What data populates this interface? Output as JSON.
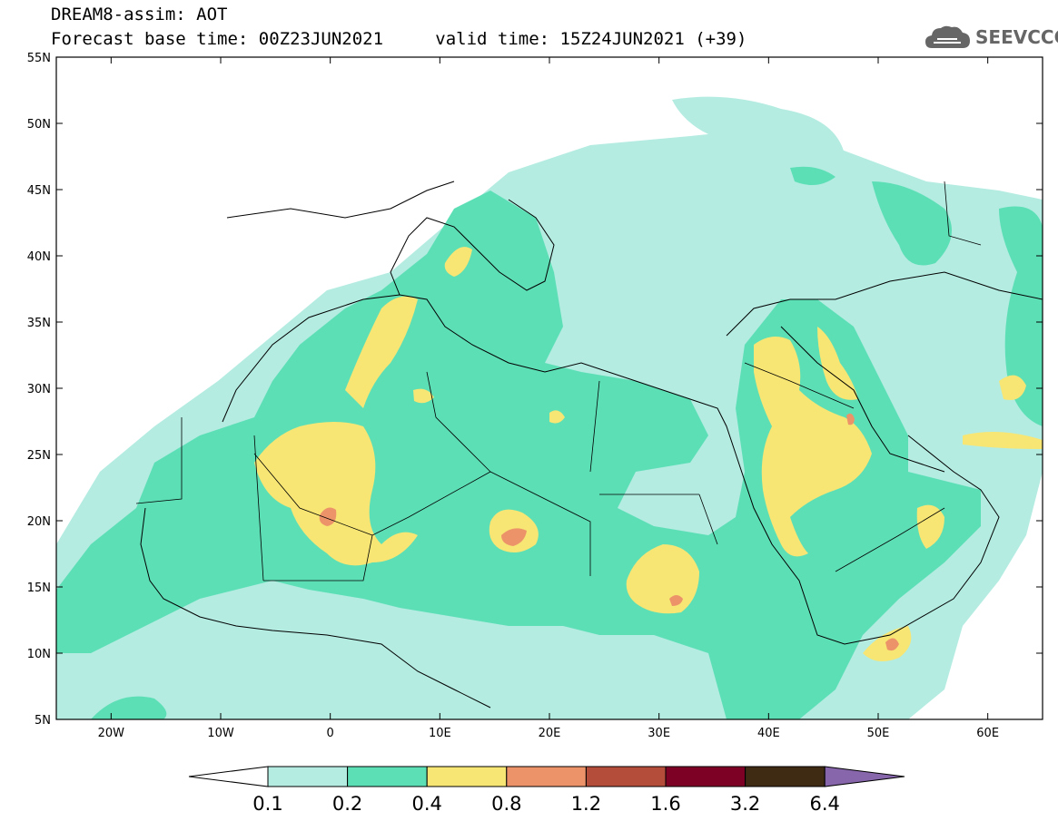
{
  "header": {
    "title": "DREAM8-assim: AOT",
    "forecast_base": "Forecast base time: 00Z23JUN2021",
    "valid_time": "valid time: 15Z24JUN2021 (+39)",
    "logo_text": "SEEVCCC",
    "logo_icon": "cloud-icon"
  },
  "map": {
    "lon_range": [
      -25,
      65
    ],
    "lat_range": [
      5,
      55
    ],
    "lat_labels": [
      "55N",
      "50N",
      "45N",
      "40N",
      "35N",
      "30N",
      "25N",
      "20N",
      "15N",
      "10N",
      "5N"
    ],
    "lon_labels": [
      "20W",
      "10W",
      "0",
      "10E",
      "20E",
      "30E",
      "40E",
      "50E",
      "60E"
    ],
    "background": "#ffffff"
  },
  "colorbar": {
    "labels": [
      "0.1",
      "0.2",
      "0.4",
      "0.8",
      "1.2",
      "1.6",
      "3.2",
      "6.4"
    ],
    "colors": [
      "#ffffff",
      "#b4ece2",
      "#5ddfb6",
      "#f7e674",
      "#ec936a",
      "#b54d3b",
      "#7c0124",
      "#3f2a14",
      "#8766ab"
    ]
  }
}
